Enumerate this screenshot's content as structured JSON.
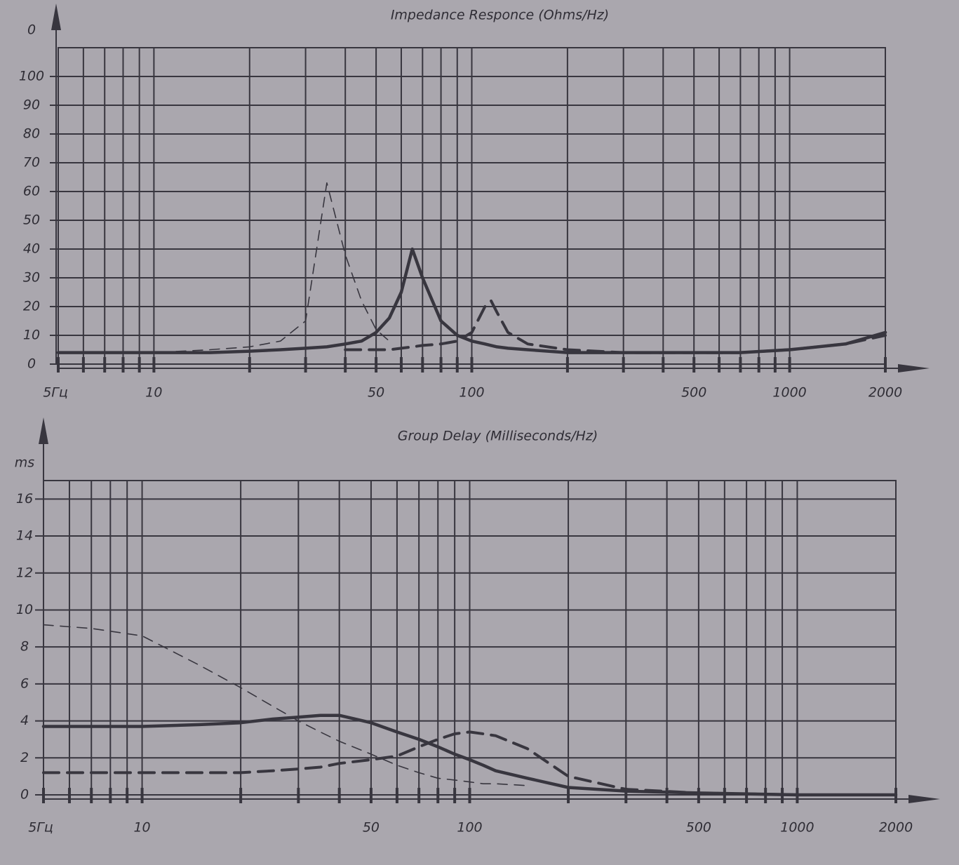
{
  "chart_data": [
    {
      "type": "line",
      "title": "Impedance Responce (Ohms/Hz)",
      "ylabel": "0",
      "xscale": "log",
      "xlim": [
        5,
        2000
      ],
      "ylim": [
        0,
        110
      ],
      "xticks": [
        {
          "value": 5,
          "label": "5Гц"
        },
        10,
        50,
        100,
        500,
        1000,
        2000
      ],
      "xminorticks": [
        6,
        7,
        8,
        9,
        20,
        30,
        40,
        60,
        70,
        80,
        90,
        200,
        300,
        400,
        600,
        700,
        800,
        900
      ],
      "yticks": [
        0,
        10,
        20,
        30,
        40,
        50,
        60,
        70,
        80,
        90,
        100
      ],
      "grid": true,
      "x": [
        5,
        7,
        10,
        15,
        20,
        25,
        30,
        35,
        40,
        45,
        50,
        55,
        60,
        65,
        70,
        80,
        90,
        100,
        110,
        115,
        120,
        130,
        150,
        200,
        300,
        500,
        700,
        1000,
        1500,
        2000
      ],
      "series": [
        {
          "color": "#38363f",
          "line_style": "solid-thick",
          "values": [
            4,
            4,
            4,
            4,
            4.5,
            5,
            5.5,
            6,
            7,
            8,
            11,
            16,
            25,
            40,
            30,
            15,
            10,
            8,
            7,
            6.5,
            6,
            5.5,
            5,
            4,
            4,
            4,
            4,
            5,
            7,
            11
          ]
        },
        {
          "color": "#38363f",
          "line_style": "dashed-thin",
          "values": [
            4,
            4,
            4,
            5,
            6,
            8,
            15,
            63,
            38,
            22,
            12,
            8,
            null,
            null,
            null,
            null,
            null,
            null,
            null,
            null,
            null,
            null,
            null,
            null,
            null,
            null,
            null,
            null,
            null,
            null
          ]
        },
        {
          "color": "#38363f",
          "line_style": "dashed-thick",
          "values": [
            null,
            null,
            null,
            null,
            null,
            null,
            null,
            null,
            5,
            5,
            5,
            5,
            5.5,
            6,
            6.5,
            7,
            8,
            11,
            20,
            22,
            18,
            11,
            7,
            5,
            4,
            4,
            4,
            5,
            7,
            10
          ]
        }
      ]
    },
    {
      "type": "line",
      "title": "Group Delay (Milliseconds/Hz)",
      "ylabel": "ms",
      "xscale": "log",
      "xlim": [
        5,
        2000
      ],
      "ylim": [
        0,
        17
      ],
      "xticks": [
        {
          "value": 5,
          "label": "5Гц"
        },
        10,
        50,
        100,
        500,
        1000,
        2000
      ],
      "xminorticks": [
        6,
        7,
        8,
        9,
        20,
        30,
        40,
        60,
        70,
        80,
        90,
        200,
        300,
        400,
        600,
        700,
        800,
        900
      ],
      "yticks": [
        0,
        2,
        4,
        6,
        8,
        10,
        12,
        14,
        16
      ],
      "grid": true,
      "x": [
        5,
        7,
        10,
        15,
        20,
        25,
        30,
        35,
        40,
        50,
        60,
        70,
        80,
        90,
        100,
        110,
        120,
        150,
        200,
        300,
        500,
        1000,
        2000
      ],
      "series": [
        {
          "color": "#38363f",
          "line_style": "solid-thick",
          "values": [
            3.7,
            3.7,
            3.7,
            3.8,
            3.9,
            4.1,
            4.2,
            4.3,
            4.3,
            3.9,
            3.4,
            3,
            2.6,
            2.2,
            1.9,
            1.6,
            1.3,
            0.9,
            0.4,
            0.2,
            0.1,
            0,
            0
          ]
        },
        {
          "color": "#38363f",
          "line_style": "dashed-thin",
          "values": [
            9.2,
            9,
            8.6,
            7,
            5.8,
            4.8,
            4,
            3.4,
            2.9,
            2.2,
            1.6,
            1.2,
            0.9,
            0.8,
            0.7,
            0.6,
            0.6,
            0.5,
            null,
            null,
            null,
            null,
            null
          ]
        },
        {
          "color": "#38363f",
          "line_style": "dashed-thick",
          "values": [
            1.2,
            1.2,
            1.2,
            1.2,
            1.2,
            1.3,
            1.4,
            1.5,
            1.7,
            1.9,
            2.1,
            2.6,
            3,
            3.3,
            3.4,
            3.3,
            3.2,
            2.5,
            1,
            0.3,
            0.1,
            0,
            0
          ]
        }
      ]
    }
  ]
}
